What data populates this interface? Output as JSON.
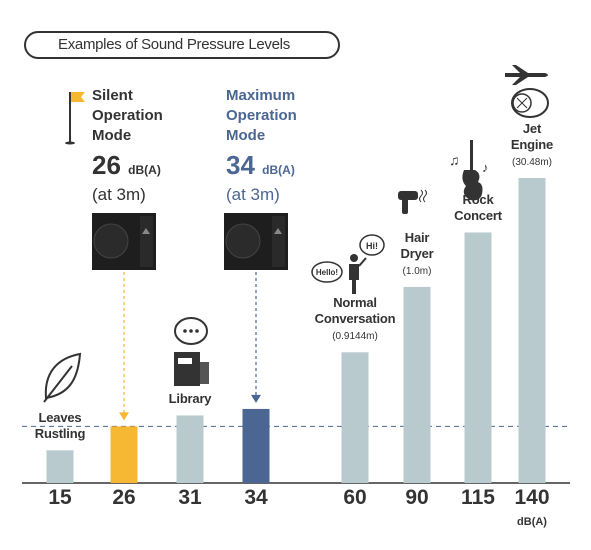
{
  "chart_data": {
    "type": "bar",
    "title": "Examples of Sound Pressure Levels",
    "categories": [
      "Leaves Rustling",
      null,
      "Library",
      null,
      "Normal Conversation",
      "Hair Dryer",
      "Rock Concert",
      "Jet Engine"
    ],
    "values": [
      15,
      26,
      31,
      34,
      60,
      90,
      115,
      140
    ],
    "distances": [
      null,
      null,
      null,
      null,
      "(0.9144m)",
      "(1.0m)",
      null,
      "(30.48m)"
    ],
    "colors": [
      "#b9cacf",
      "#f6b733",
      "#b9cacf",
      "#4b6692",
      "#b9cacf",
      "#b9cacf",
      "#b9cacf",
      "#b9cacf"
    ],
    "unit": "dB(A)",
    "ylim": [
      0,
      140
    ],
    "annotations": [
      {
        "text": "Silent Operation Mode",
        "distance": "(at 3m)",
        "color": "#333333",
        "arrow_color": "#f6b733"
      },
      {
        "text": "Maximum Operation Mode",
        "distance": "(at 3m)",
        "color": "#4b6692",
        "arrow_color": "#4b6692"
      }
    ],
    "reference_line_color": "#4b6692"
  }
}
